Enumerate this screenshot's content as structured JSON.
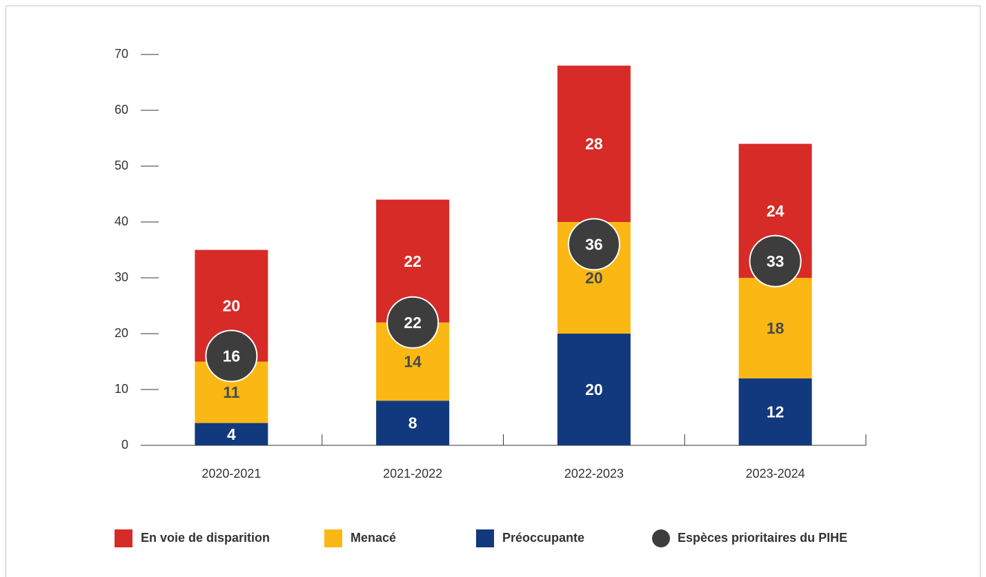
{
  "chart_data": {
    "type": "bar",
    "stacked": true,
    "categories": [
      "2020-2021",
      "2021-2022",
      "2022-2023",
      "2023-2024"
    ],
    "series": [
      {
        "name": "En voie de disparition",
        "color": "#d72b27",
        "label_color": "#ffffff",
        "values": [
          20,
          22,
          28,
          24
        ]
      },
      {
        "name": "Menacé",
        "color": "#fbb814",
        "label_color": "#4a4a4a",
        "values": [
          11,
          14,
          20,
          18
        ]
      },
      {
        "name": "Préoccupante",
        "color": "#12397d",
        "label_color": "#ffffff",
        "values": [
          4,
          8,
          20,
          12
        ]
      },
      {
        "name": "Espèces prioritaires du PIHE",
        "type": "marker",
        "color": "#3d3d3d",
        "label_color": "#ffffff",
        "values": [
          16,
          22,
          36,
          33
        ]
      }
    ],
    "ylim": [
      0,
      70
    ],
    "yticks": [
      0,
      10,
      20,
      30,
      40,
      50,
      60,
      70
    ],
    "legend": "bottom"
  }
}
